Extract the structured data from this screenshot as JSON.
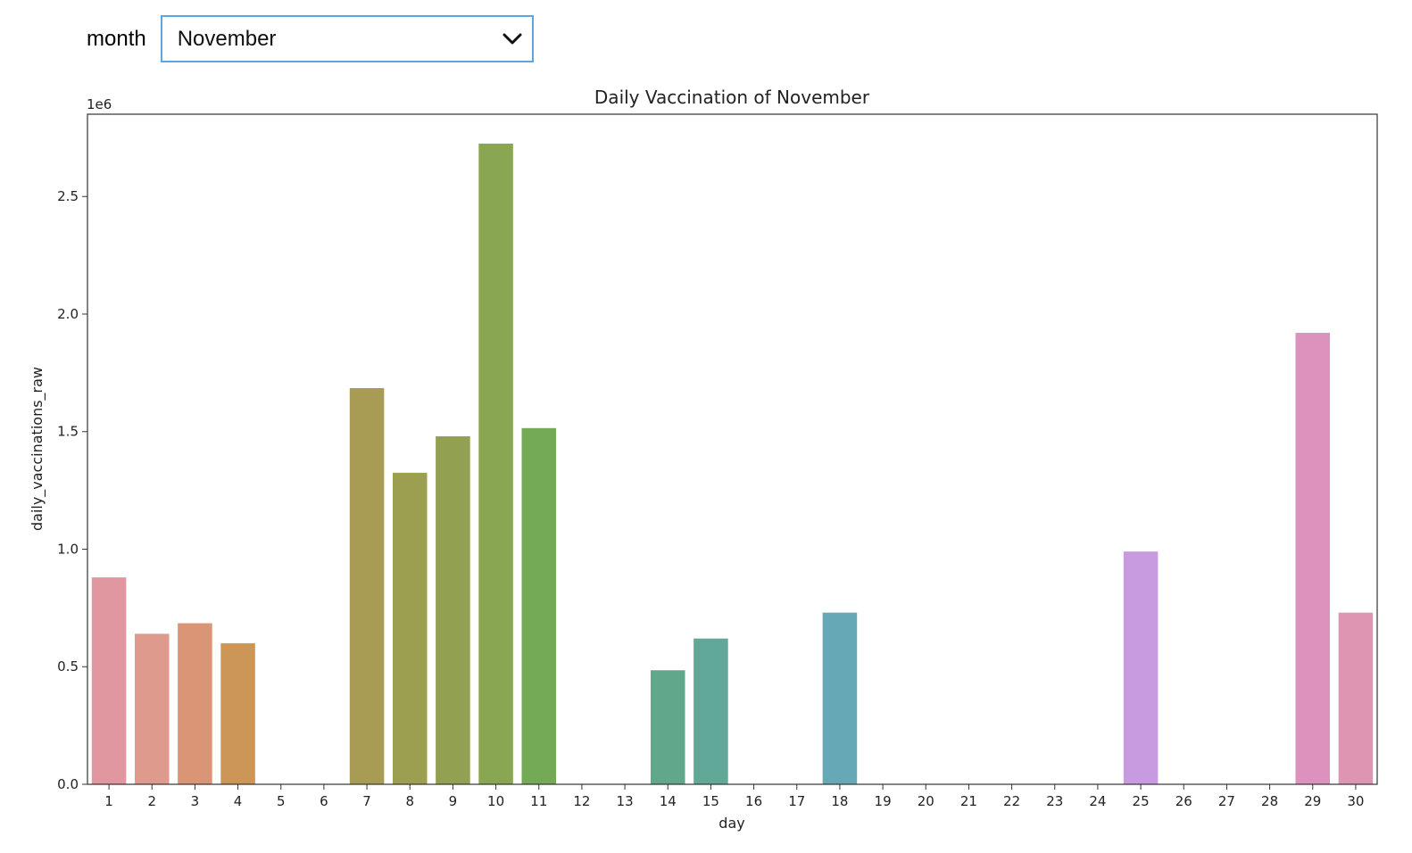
{
  "controls": {
    "label": "month",
    "selected": "November",
    "chevron_icon": "chevron-down-icon"
  },
  "chart_data": {
    "type": "bar",
    "title": "Daily Vaccination of November",
    "xlabel": "day",
    "ylabel": "daily_vaccinations_raw",
    "y_offset_label": "1e6",
    "ylim": [
      0,
      2.85
    ],
    "yticks": [
      "0.0",
      "0.5",
      "1.0",
      "1.5",
      "2.0",
      "2.5"
    ],
    "ytick_values": [
      0,
      0.5,
      1.0,
      1.5,
      2.0,
      2.5
    ],
    "categories": [
      "1",
      "2",
      "3",
      "4",
      "5",
      "6",
      "7",
      "8",
      "9",
      "10",
      "11",
      "12",
      "13",
      "14",
      "15",
      "16",
      "17",
      "18",
      "19",
      "20",
      "21",
      "22",
      "23",
      "24",
      "25",
      "26",
      "27",
      "28",
      "29",
      "30"
    ],
    "values": [
      0.88,
      0.64,
      0.685,
      0.6,
      0,
      0,
      1.685,
      1.325,
      1.48,
      2.725,
      1.515,
      0,
      0,
      0.485,
      0.62,
      0,
      0,
      0.73,
      0,
      0,
      0,
      0,
      0,
      0,
      0.99,
      0,
      0,
      0,
      1.92,
      0.73
    ],
    "colors": [
      "#e0979f",
      "#de9a8c",
      "#da9576",
      "#cc9656",
      "#c0a050",
      "#b2a048",
      "#a89b53",
      "#9c9f50",
      "#92a052",
      "#89a753",
      "#74aa56",
      "#68a868",
      "#60a679",
      "#60a78c",
      "#62a898",
      "#62a8a3",
      "#63a7ae",
      "#66a8b5",
      "#6aa6c2",
      "#6ea3cc",
      "#7ba4d7",
      "#8aa0dc",
      "#a29ddf",
      "#b79de1",
      "#c89be1",
      "#d39ae0",
      "#d899d5",
      "#dc95c8",
      "#dc92bc",
      "#de95b2"
    ],
    "grid": false,
    "legend": "none"
  }
}
